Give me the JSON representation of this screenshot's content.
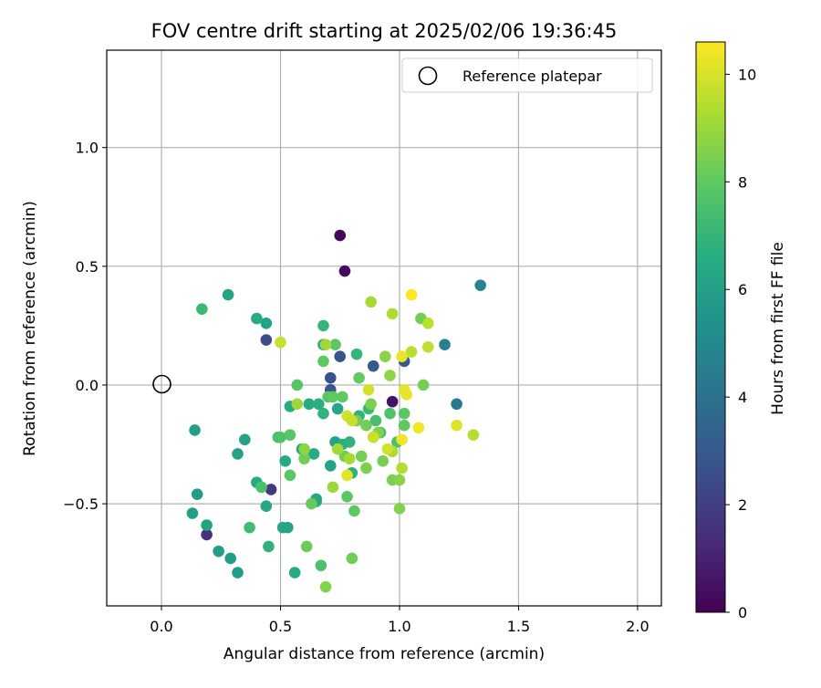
{
  "chart_data": {
    "type": "scatter",
    "title": "FOV centre drift starting at 2025/02/06 19:36:45",
    "xlabel": "Angular distance from reference (arcmin)",
    "ylabel": "Rotation from reference (arcmin)",
    "xlim": [
      -0.23,
      2.1
    ],
    "ylim": [
      -0.93,
      1.41
    ],
    "xticks": [
      0.0,
      0.5,
      1.0,
      1.5,
      2.0
    ],
    "xtick_labels": [
      "0.0",
      "0.5",
      "1.0",
      "1.5",
      "2.0"
    ],
    "yticks": [
      -0.5,
      0.0,
      0.5,
      1.0
    ],
    "ytick_labels": [
      "−0.5",
      "0.0",
      "0.5",
      "1.0"
    ],
    "grid": true,
    "legend": {
      "position": "top-right",
      "entries": [
        "Reference platepar"
      ]
    },
    "reference_point": {
      "x": 0.0,
      "y": 0.0
    },
    "colorbar": {
      "label": "Hours from first FF file",
      "colormap": "viridis",
      "range": [
        0,
        10.6
      ],
      "ticks": [
        0,
        2,
        4,
        6,
        8,
        10
      ],
      "tick_labels": [
        "0",
        "2",
        "4",
        "6",
        "8",
        "10"
      ]
    },
    "points": [
      {
        "x": 0.75,
        "y": 0.63,
        "h": 0.2
      },
      {
        "x": 0.77,
        "y": 0.48,
        "h": 0.3
      },
      {
        "x": 0.97,
        "y": -0.07,
        "h": 0.5
      },
      {
        "x": 0.19,
        "y": -0.63,
        "h": 1.5
      },
      {
        "x": 0.46,
        "y": -0.44,
        "h": 1.8
      },
      {
        "x": 0.44,
        "y": 0.19,
        "h": 2.5
      },
      {
        "x": 0.75,
        "y": 0.12,
        "h": 2.8
      },
      {
        "x": 0.71,
        "y": 0.03,
        "h": 2.7
      },
      {
        "x": 0.71,
        "y": -0.02,
        "h": 2.8
      },
      {
        "x": 0.89,
        "y": 0.08,
        "h": 3.0
      },
      {
        "x": 1.02,
        "y": 0.1,
        "h": 3.0
      },
      {
        "x": 1.34,
        "y": 0.42,
        "h": 4.8
      },
      {
        "x": 1.19,
        "y": 0.17,
        "h": 4.6
      },
      {
        "x": 1.24,
        "y": -0.08,
        "h": 4.3
      },
      {
        "x": 0.28,
        "y": 0.38,
        "h": 6.2
      },
      {
        "x": 0.44,
        "y": 0.26,
        "h": 6.1
      },
      {
        "x": 0.4,
        "y": 0.28,
        "h": 6.6
      },
      {
        "x": 0.14,
        "y": -0.19,
        "h": 6.0
      },
      {
        "x": 0.35,
        "y": -0.23,
        "h": 6.1
      },
      {
        "x": 0.32,
        "y": -0.29,
        "h": 6.1
      },
      {
        "x": 0.15,
        "y": -0.46,
        "h": 5.9
      },
      {
        "x": 0.13,
        "y": -0.54,
        "h": 6.0
      },
      {
        "x": 0.19,
        "y": -0.59,
        "h": 6.2
      },
      {
        "x": 0.24,
        "y": -0.7,
        "h": 6.0
      },
      {
        "x": 0.29,
        "y": -0.73,
        "h": 6.0
      },
      {
        "x": 0.32,
        "y": -0.79,
        "h": 5.9
      },
      {
        "x": 0.44,
        "y": -0.51,
        "h": 6.3
      },
      {
        "x": 0.4,
        "y": -0.41,
        "h": 6.5
      },
      {
        "x": 0.45,
        "y": -0.68,
        "h": 6.8
      },
      {
        "x": 0.51,
        "y": -0.6,
        "h": 6.3
      },
      {
        "x": 0.56,
        "y": -0.79,
        "h": 6.5
      },
      {
        "x": 0.53,
        "y": -0.6,
        "h": 6.2
      },
      {
        "x": 0.65,
        "y": -0.48,
        "h": 6.4
      },
      {
        "x": 0.65,
        "y": -0.49,
        "h": 6.3
      },
      {
        "x": 0.52,
        "y": -0.32,
        "h": 6.6
      },
      {
        "x": 0.54,
        "y": -0.09,
        "h": 6.6
      },
      {
        "x": 0.59,
        "y": -0.27,
        "h": 6.4
      },
      {
        "x": 0.62,
        "y": -0.08,
        "h": 6.6
      },
      {
        "x": 0.64,
        "y": -0.29,
        "h": 6.5
      },
      {
        "x": 0.66,
        "y": -0.08,
        "h": 6.7
      },
      {
        "x": 0.68,
        "y": -0.12,
        "h": 6.9
      },
      {
        "x": 0.68,
        "y": 0.25,
        "h": 7.0
      },
      {
        "x": 0.68,
        "y": 0.17,
        "h": 6.6
      },
      {
        "x": 0.71,
        "y": -0.34,
        "h": 6.2
      },
      {
        "x": 0.73,
        "y": -0.24,
        "h": 6.1
      },
      {
        "x": 0.74,
        "y": -0.1,
        "h": 6.3
      },
      {
        "x": 0.76,
        "y": -0.25,
        "h": 6.7
      },
      {
        "x": 0.79,
        "y": -0.24,
        "h": 6.8
      },
      {
        "x": 0.8,
        "y": -0.37,
        "h": 6.8
      },
      {
        "x": 0.82,
        "y": 0.13,
        "h": 7.0
      },
      {
        "x": 0.83,
        "y": -0.13,
        "h": 6.9
      },
      {
        "x": 0.87,
        "y": -0.1,
        "h": 7.2
      },
      {
        "x": 0.9,
        "y": -0.15,
        "h": 7.4
      },
      {
        "x": 0.92,
        "y": -0.2,
        "h": 7.5
      },
      {
        "x": 0.96,
        "y": -0.12,
        "h": 7.6
      },
      {
        "x": 0.99,
        "y": -0.24,
        "h": 7.5
      },
      {
        "x": 1.02,
        "y": -0.12,
        "h": 7.9
      },
      {
        "x": 1.02,
        "y": -0.17,
        "h": 8.0
      },
      {
        "x": 1.09,
        "y": 0.28,
        "h": 8.3
      },
      {
        "x": 1.1,
        "y": 0.0,
        "h": 8.4
      },
      {
        "x": 0.17,
        "y": 0.32,
        "h": 7.2
      },
      {
        "x": 0.37,
        "y": -0.6,
        "h": 7.3
      },
      {
        "x": 0.42,
        "y": -0.43,
        "h": 7.5
      },
      {
        "x": 0.49,
        "y": -0.22,
        "h": 7.4
      },
      {
        "x": 0.5,
        "y": -0.22,
        "h": 7.6
      },
      {
        "x": 0.54,
        "y": -0.21,
        "h": 7.8
      },
      {
        "x": 0.54,
        "y": -0.38,
        "h": 7.9
      },
      {
        "x": 0.57,
        "y": 0.0,
        "h": 7.8
      },
      {
        "x": 0.6,
        "y": -0.31,
        "h": 8.3
      },
      {
        "x": 0.61,
        "y": -0.68,
        "h": 8.2
      },
      {
        "x": 0.63,
        "y": -0.5,
        "h": 8.1
      },
      {
        "x": 0.67,
        "y": -0.76,
        "h": 7.6
      },
      {
        "x": 0.69,
        "y": -0.85,
        "h": 8.6
      },
      {
        "x": 0.7,
        "y": -0.05,
        "h": 7.8
      },
      {
        "x": 0.68,
        "y": 0.1,
        "h": 8.0
      },
      {
        "x": 0.72,
        "y": -0.05,
        "h": 8.0
      },
      {
        "x": 0.73,
        "y": 0.17,
        "h": 7.9
      },
      {
        "x": 0.76,
        "y": -0.05,
        "h": 8.0
      },
      {
        "x": 0.77,
        "y": -0.3,
        "h": 8.3
      },
      {
        "x": 0.78,
        "y": -0.47,
        "h": 7.9
      },
      {
        "x": 0.8,
        "y": -0.73,
        "h": 8.3
      },
      {
        "x": 0.81,
        "y": -0.53,
        "h": 8.0
      },
      {
        "x": 0.82,
        "y": -0.15,
        "h": 8.3
      },
      {
        "x": 0.83,
        "y": 0.03,
        "h": 8.1
      },
      {
        "x": 0.84,
        "y": -0.3,
        "h": 8.4
      },
      {
        "x": 0.86,
        "y": -0.35,
        "h": 8.5
      },
      {
        "x": 0.86,
        "y": -0.17,
        "h": 8.3
      },
      {
        "x": 0.88,
        "y": -0.08,
        "h": 8.5
      },
      {
        "x": 0.89,
        "y": -0.22,
        "h": 8.5
      },
      {
        "x": 0.91,
        "y": -0.2,
        "h": 8.6
      },
      {
        "x": 0.93,
        "y": -0.32,
        "h": 8.4
      },
      {
        "x": 0.94,
        "y": 0.12,
        "h": 8.7
      },
      {
        "x": 0.96,
        "y": 0.04,
        "h": 8.8
      },
      {
        "x": 0.97,
        "y": -0.4,
        "h": 8.5
      },
      {
        "x": 1.0,
        "y": -0.4,
        "h": 8.7
      },
      {
        "x": 1.0,
        "y": -0.52,
        "h": 8.6
      },
      {
        "x": 0.6,
        "y": -0.27,
        "h": 8.8
      },
      {
        "x": 0.57,
        "y": -0.08,
        "h": 9.0
      },
      {
        "x": 0.69,
        "y": 0.17,
        "h": 9.1
      },
      {
        "x": 0.72,
        "y": -0.43,
        "h": 9.0
      },
      {
        "x": 0.74,
        "y": -0.27,
        "h": 9.1
      },
      {
        "x": 0.79,
        "y": -0.31,
        "h": 9.2
      },
      {
        "x": 0.88,
        "y": 0.35,
        "h": 9.2
      },
      {
        "x": 0.97,
        "y": 0.3,
        "h": 9.3
      },
      {
        "x": 0.97,
        "y": -0.28,
        "h": 9.3
      },
      {
        "x": 1.01,
        "y": -0.35,
        "h": 9.4
      },
      {
        "x": 1.05,
        "y": 0.14,
        "h": 9.5
      },
      {
        "x": 1.12,
        "y": 0.26,
        "h": 9.5
      },
      {
        "x": 1.12,
        "y": 0.16,
        "h": 9.6
      },
      {
        "x": 1.31,
        "y": -0.21,
        "h": 9.4
      },
      {
        "x": 0.5,
        "y": 0.18,
        "h": 9.7
      },
      {
        "x": 0.78,
        "y": -0.13,
        "h": 9.9
      },
      {
        "x": 0.8,
        "y": -0.15,
        "h": 9.8
      },
      {
        "x": 0.87,
        "y": -0.02,
        "h": 9.9
      },
      {
        "x": 0.89,
        "y": -0.22,
        "h": 9.8
      },
      {
        "x": 0.95,
        "y": -0.27,
        "h": 9.9
      },
      {
        "x": 0.78,
        "y": -0.38,
        "h": 10.2
      },
      {
        "x": 1.01,
        "y": 0.12,
        "h": 10.3
      },
      {
        "x": 1.02,
        "y": -0.02,
        "h": 10.2
      },
      {
        "x": 1.03,
        "y": -0.04,
        "h": 10.3
      },
      {
        "x": 1.01,
        "y": -0.23,
        "h": 10.4
      },
      {
        "x": 1.05,
        "y": 0.38,
        "h": 10.6
      },
      {
        "x": 1.08,
        "y": -0.18,
        "h": 10.4
      },
      {
        "x": 1.24,
        "y": -0.17,
        "h": 10.1
      }
    ]
  }
}
